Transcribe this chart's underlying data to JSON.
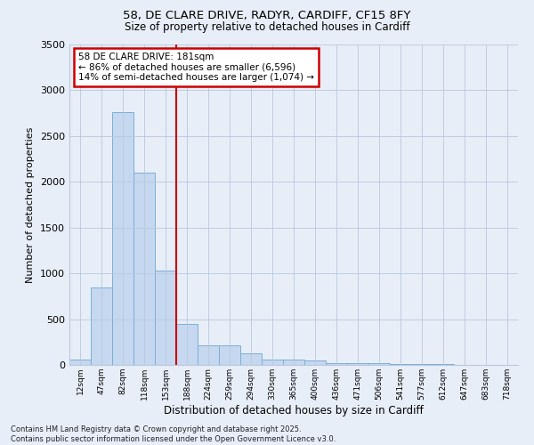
{
  "title1": "58, DE CLARE DRIVE, RADYR, CARDIFF, CF15 8FY",
  "title2": "Size of property relative to detached houses in Cardiff",
  "xlabel": "Distribution of detached houses by size in Cardiff",
  "ylabel": "Number of detached properties",
  "footer1": "Contains HM Land Registry data © Crown copyright and database right 2025.",
  "footer2": "Contains public sector information licensed under the Open Government Licence v3.0.",
  "annotation_title": "58 DE CLARE DRIVE: 181sqm",
  "annotation_line1": "← 86% of detached houses are smaller (6,596)",
  "annotation_line2": "14% of semi-detached houses are larger (1,074) →",
  "bar_color": "#c5d8f0",
  "bar_edge_color": "#7bafd4",
  "vline_color": "#cc0000",
  "annotation_box_color": "#cc0000",
  "background_color": "#e8eef8",
  "categories": [
    "12sqm",
    "47sqm",
    "82sqm",
    "118sqm",
    "153sqm",
    "188sqm",
    "224sqm",
    "259sqm",
    "294sqm",
    "330sqm",
    "365sqm",
    "400sqm",
    "436sqm",
    "471sqm",
    "506sqm",
    "541sqm",
    "577sqm",
    "612sqm",
    "647sqm",
    "683sqm",
    "718sqm"
  ],
  "values": [
    55,
    850,
    2760,
    2100,
    1030,
    450,
    215,
    215,
    130,
    60,
    60,
    45,
    20,
    20,
    15,
    5,
    5,
    5,
    2,
    2,
    2
  ],
  "ylim": [
    0,
    3500
  ],
  "yticks": [
    0,
    500,
    1000,
    1500,
    2000,
    2500,
    3000,
    3500
  ],
  "vline_x_index": 5.0
}
